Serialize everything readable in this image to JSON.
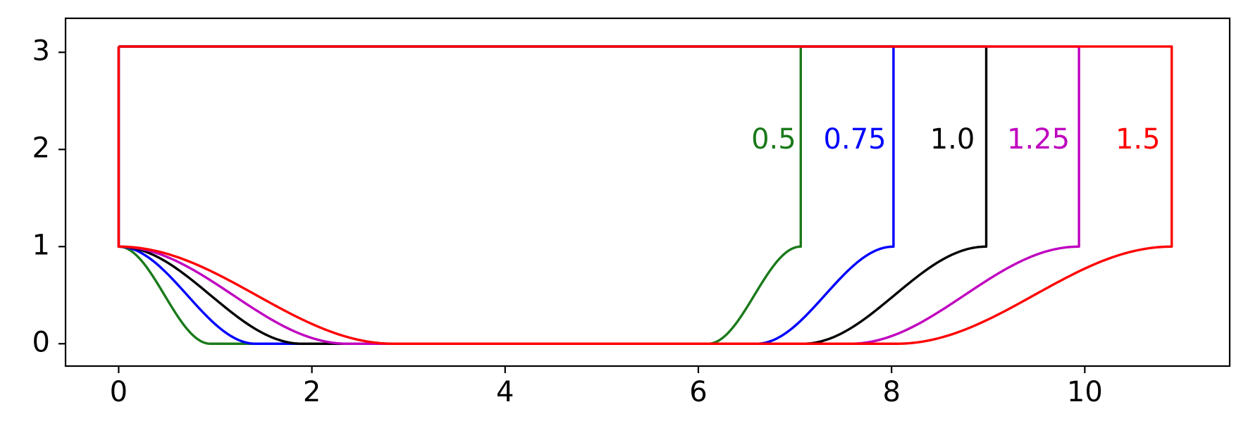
{
  "chart_data": {
    "type": "line",
    "title": "",
    "xlabel": "",
    "ylabel": "",
    "xlim": [
      -0.55,
      11.5
    ],
    "ylim": [
      -0.23,
      3.35
    ],
    "xticks": [
      0,
      2,
      4,
      6,
      8,
      10
    ],
    "xtick_labels": [
      "0",
      "2",
      "4",
      "6",
      "8",
      "10"
    ],
    "yticks": [
      0,
      1,
      2,
      3
    ],
    "ytick_labels": [
      "0",
      "1",
      "2",
      "3"
    ],
    "grid": false,
    "legend": "none",
    "top_level": 3.06,
    "label_y": 2.09,
    "series": [
      {
        "name": "0.5",
        "color": "#1a7a1a",
        "end_x": 7.06,
        "label_x": 6.78,
        "x": [
          0,
          0.95,
          6.1,
          7.06
        ],
        "y": [
          1.0,
          0.0,
          0.0,
          1.0
        ]
      },
      {
        "name": "0.75",
        "color": "#0000ff",
        "end_x": 8.02,
        "label_x": 7.62,
        "x": [
          0,
          1.42,
          6.6,
          8.02
        ],
        "y": [
          1.0,
          0.0,
          0.0,
          1.0
        ]
      },
      {
        "name": "1.0",
        "color": "#000000",
        "end_x": 8.98,
        "label_x": 8.63,
        "x": [
          0,
          1.9,
          7.08,
          8.98
        ],
        "y": [
          1.0,
          0.0,
          0.0,
          1.0
        ]
      },
      {
        "name": "1.25",
        "color": "#bf00bf",
        "end_x": 9.94,
        "label_x": 9.52,
        "x": [
          0,
          2.37,
          7.57,
          9.94
        ],
        "y": [
          1.0,
          0.0,
          0.0,
          1.0
        ]
      },
      {
        "name": "1.5",
        "color": "#ff0000",
        "end_x": 10.9,
        "label_x": 10.55,
        "x": [
          0,
          2.85,
          8.05,
          10.9
        ],
        "y": [
          1.0,
          0.0,
          0.0,
          1.0
        ]
      }
    ]
  }
}
